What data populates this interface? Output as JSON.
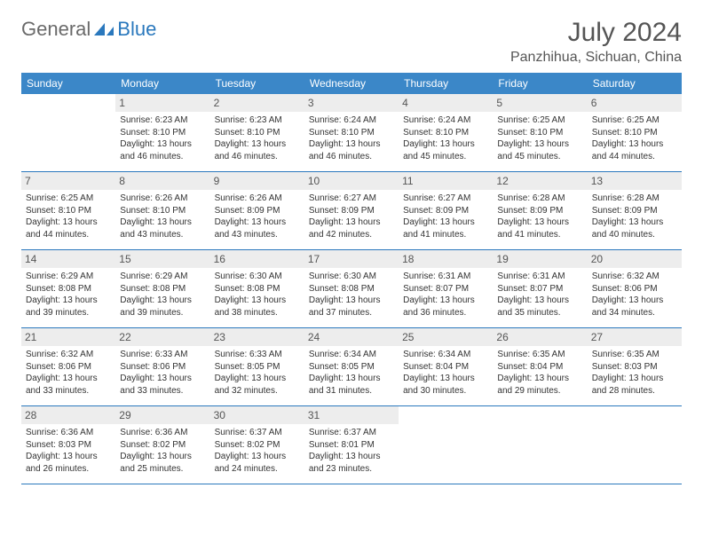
{
  "logo": {
    "part1": "General",
    "part2": "Blue"
  },
  "title": "July 2024",
  "location": "Panzhihua, Sichuan, China",
  "header_bg": "#3b87c8",
  "accent": "#2a78bd",
  "day_num_bg": "#ededed",
  "text_color": "#333333",
  "day_names": [
    "Sunday",
    "Monday",
    "Tuesday",
    "Wednesday",
    "Thursday",
    "Friday",
    "Saturday"
  ],
  "weeks": [
    [
      null,
      {
        "n": "1",
        "sr": "6:23 AM",
        "ss": "8:10 PM",
        "dl": "13 hours and 46 minutes."
      },
      {
        "n": "2",
        "sr": "6:23 AM",
        "ss": "8:10 PM",
        "dl": "13 hours and 46 minutes."
      },
      {
        "n": "3",
        "sr": "6:24 AM",
        "ss": "8:10 PM",
        "dl": "13 hours and 46 minutes."
      },
      {
        "n": "4",
        "sr": "6:24 AM",
        "ss": "8:10 PM",
        "dl": "13 hours and 45 minutes."
      },
      {
        "n": "5",
        "sr": "6:25 AM",
        "ss": "8:10 PM",
        "dl": "13 hours and 45 minutes."
      },
      {
        "n": "6",
        "sr": "6:25 AM",
        "ss": "8:10 PM",
        "dl": "13 hours and 44 minutes."
      }
    ],
    [
      {
        "n": "7",
        "sr": "6:25 AM",
        "ss": "8:10 PM",
        "dl": "13 hours and 44 minutes."
      },
      {
        "n": "8",
        "sr": "6:26 AM",
        "ss": "8:10 PM",
        "dl": "13 hours and 43 minutes."
      },
      {
        "n": "9",
        "sr": "6:26 AM",
        "ss": "8:09 PM",
        "dl": "13 hours and 43 minutes."
      },
      {
        "n": "10",
        "sr": "6:27 AM",
        "ss": "8:09 PM",
        "dl": "13 hours and 42 minutes."
      },
      {
        "n": "11",
        "sr": "6:27 AM",
        "ss": "8:09 PM",
        "dl": "13 hours and 41 minutes."
      },
      {
        "n": "12",
        "sr": "6:28 AM",
        "ss": "8:09 PM",
        "dl": "13 hours and 41 minutes."
      },
      {
        "n": "13",
        "sr": "6:28 AM",
        "ss": "8:09 PM",
        "dl": "13 hours and 40 minutes."
      }
    ],
    [
      {
        "n": "14",
        "sr": "6:29 AM",
        "ss": "8:08 PM",
        "dl": "13 hours and 39 minutes."
      },
      {
        "n": "15",
        "sr": "6:29 AM",
        "ss": "8:08 PM",
        "dl": "13 hours and 39 minutes."
      },
      {
        "n": "16",
        "sr": "6:30 AM",
        "ss": "8:08 PM",
        "dl": "13 hours and 38 minutes."
      },
      {
        "n": "17",
        "sr": "6:30 AM",
        "ss": "8:08 PM",
        "dl": "13 hours and 37 minutes."
      },
      {
        "n": "18",
        "sr": "6:31 AM",
        "ss": "8:07 PM",
        "dl": "13 hours and 36 minutes."
      },
      {
        "n": "19",
        "sr": "6:31 AM",
        "ss": "8:07 PM",
        "dl": "13 hours and 35 minutes."
      },
      {
        "n": "20",
        "sr": "6:32 AM",
        "ss": "8:06 PM",
        "dl": "13 hours and 34 minutes."
      }
    ],
    [
      {
        "n": "21",
        "sr": "6:32 AM",
        "ss": "8:06 PM",
        "dl": "13 hours and 33 minutes."
      },
      {
        "n": "22",
        "sr": "6:33 AM",
        "ss": "8:06 PM",
        "dl": "13 hours and 33 minutes."
      },
      {
        "n": "23",
        "sr": "6:33 AM",
        "ss": "8:05 PM",
        "dl": "13 hours and 32 minutes."
      },
      {
        "n": "24",
        "sr": "6:34 AM",
        "ss": "8:05 PM",
        "dl": "13 hours and 31 minutes."
      },
      {
        "n": "25",
        "sr": "6:34 AM",
        "ss": "8:04 PM",
        "dl": "13 hours and 30 minutes."
      },
      {
        "n": "26",
        "sr": "6:35 AM",
        "ss": "8:04 PM",
        "dl": "13 hours and 29 minutes."
      },
      {
        "n": "27",
        "sr": "6:35 AM",
        "ss": "8:03 PM",
        "dl": "13 hours and 28 minutes."
      }
    ],
    [
      {
        "n": "28",
        "sr": "6:36 AM",
        "ss": "8:03 PM",
        "dl": "13 hours and 26 minutes."
      },
      {
        "n": "29",
        "sr": "6:36 AM",
        "ss": "8:02 PM",
        "dl": "13 hours and 25 minutes."
      },
      {
        "n": "30",
        "sr": "6:37 AM",
        "ss": "8:02 PM",
        "dl": "13 hours and 24 minutes."
      },
      {
        "n": "31",
        "sr": "6:37 AM",
        "ss": "8:01 PM",
        "dl": "13 hours and 23 minutes."
      },
      null,
      null,
      null
    ]
  ],
  "labels": {
    "sunrise": "Sunrise:",
    "sunset": "Sunset:",
    "daylight": "Daylight:"
  }
}
